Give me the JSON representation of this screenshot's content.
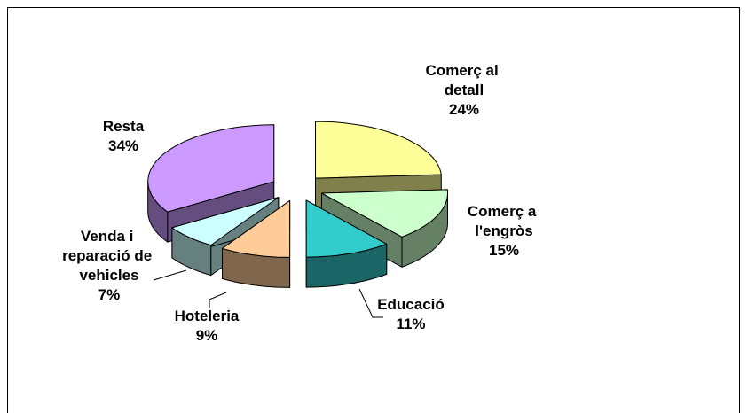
{
  "chart_data": {
    "type": "pie3d",
    "categories": [
      "Comerç al detall",
      "Comerç a l'engròs",
      "Educació",
      "Hoteleria",
      "Venda i reparació de vehicles",
      "Resta"
    ],
    "values": [
      24,
      15,
      11,
      9,
      7,
      34
    ],
    "value_labels": [
      "24%",
      "15%",
      "11%",
      "9%",
      "7%",
      "34%"
    ],
    "colors": [
      "#ffff99",
      "#ccffcc",
      "#33cccc",
      "#ffcc99",
      "#ccffff",
      "#cc99ff"
    ]
  }
}
